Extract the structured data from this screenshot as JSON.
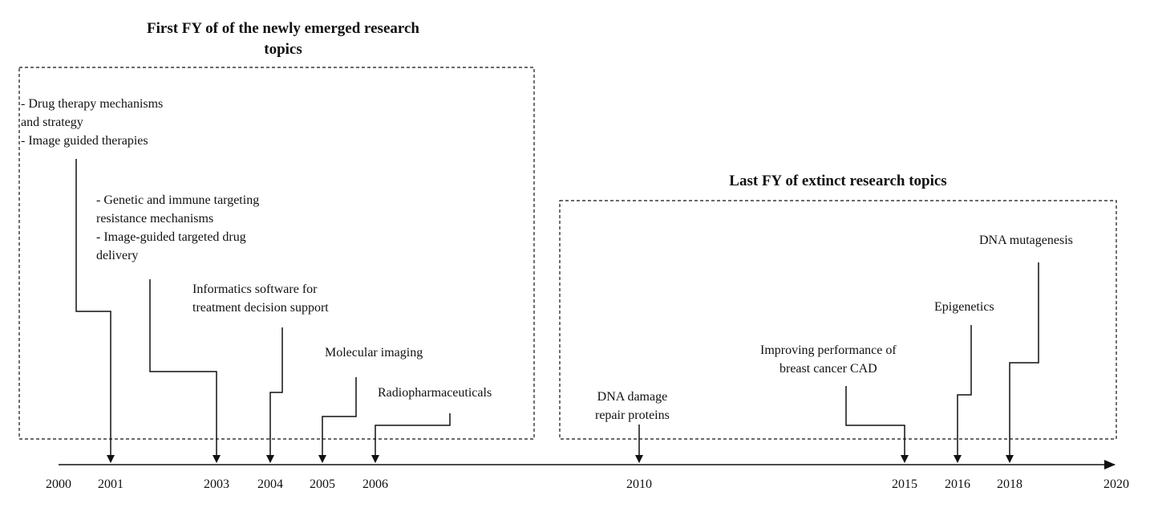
{
  "groups": {
    "emerged": {
      "title": "First FY of of the newly emerged research topics"
    },
    "extinct": {
      "title": "Last FY of extinct research topics"
    }
  },
  "axis": {
    "years": [
      "2000",
      "2001",
      "2003",
      "2004",
      "2005",
      "2006",
      "2010",
      "2015",
      "2016",
      "2018",
      "2020"
    ]
  },
  "topics": {
    "drug_therapy": "- Drug therapy mechanisms\nand strategy\n- Image guided therapies",
    "genetic_immune": "- Genetic and immune targeting\nresistance mechanisms\n- Image-guided targeted drug\ndelivery",
    "informatics": "Informatics software for\ntreatment decision support",
    "molecular_imaging": "Molecular imaging",
    "radiopharmaceuticals": "Radiopharmaceuticals",
    "dna_damage": "DNA damage\nrepair proteins",
    "breast_cad": "Improving performance of\nbreast cancer CAD",
    "epigenetics": "Epigenetics",
    "dna_mutagenesis": "DNA mutagenesis"
  },
  "links": [
    {
      "topic": "drug_therapy",
      "year": "2001"
    },
    {
      "topic": "genetic_immune",
      "year": "2003"
    },
    {
      "topic": "informatics",
      "year": "2004"
    },
    {
      "topic": "molecular_imaging",
      "year": "2005"
    },
    {
      "topic": "radiopharmaceuticals",
      "year": "2006"
    },
    {
      "topic": "dna_damage",
      "year": "2010"
    },
    {
      "topic": "breast_cad",
      "year": "2015"
    },
    {
      "topic": "epigenetics",
      "year": "2016"
    },
    {
      "topic": "dna_mutagenesis",
      "year": "2018"
    }
  ],
  "colors": {
    "ink": "#111111",
    "background": "#ffffff"
  }
}
